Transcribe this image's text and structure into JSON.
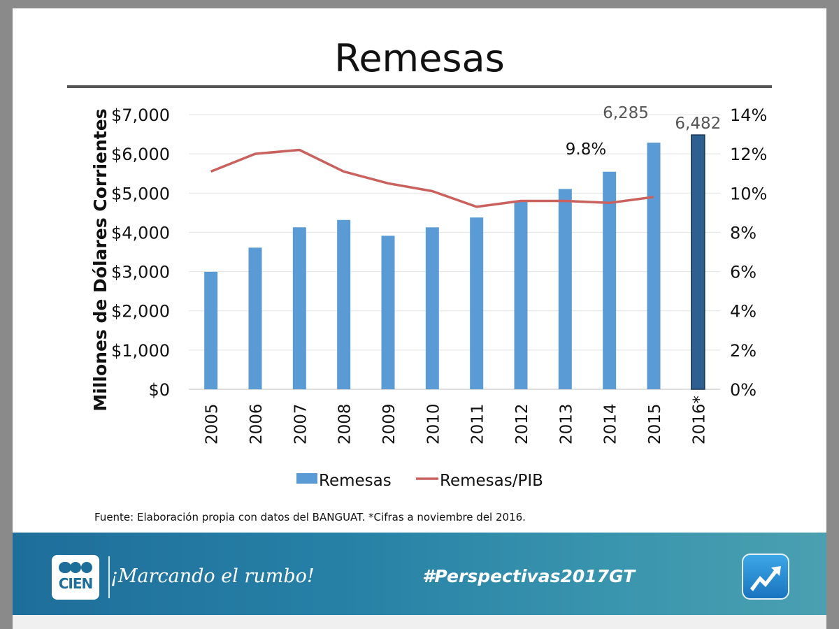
{
  "title": "Remesas",
  "source_note": "Fuente: Elaboración propia con datos del BANGUAT. *Cifras a noviembre del 2016.",
  "footer": {
    "logo_text": "CIEN",
    "slogan": "¡Marcando el rumbo!",
    "hashtag": "#Perspectivas2017GT",
    "app_icon": "trend-arrow-icon"
  },
  "colors": {
    "bar": "#5b9bd5",
    "bar_highlight": "#2e5f91",
    "line": "#c9625e",
    "footer": "#2680a6"
  },
  "chart_data": {
    "type": "bar",
    "categories": [
      "2005",
      "2006",
      "2007",
      "2008",
      "2009",
      "2010",
      "2011",
      "2012",
      "2013",
      "2014",
      "2015",
      "2016*"
    ],
    "series": [
      {
        "name": "Remesas",
        "type": "bar",
        "axis": "left",
        "values": [
          2993,
          3610,
          4128,
          4315,
          3912,
          4127,
          4378,
          4783,
          5105,
          5544,
          6285,
          6482
        ]
      },
      {
        "name": "Remesas/PIB",
        "type": "line",
        "axis": "right",
        "values": [
          11.1,
          12.0,
          12.2,
          11.1,
          10.5,
          10.1,
          9.3,
          9.6,
          9.6,
          9.5,
          9.8,
          null
        ]
      }
    ],
    "ylabel": "Millones de Dólares  Corrientes",
    "xlabel": "",
    "ylim": [
      0,
      7000
    ],
    "yticks": [
      "$0",
      "$1,000",
      "$2,000",
      "$3,000",
      "$4,000",
      "$5,000",
      "$6,000",
      "$7,000"
    ],
    "y2lim": [
      0,
      14
    ],
    "y2ticks": [
      "0%",
      "2%",
      "4%",
      "6%",
      "8%",
      "10%",
      "12%",
      "14%"
    ],
    "annotations": [
      {
        "text": "6,285",
        "target": "2015"
      },
      {
        "text": "6,482",
        "target": "2016*"
      },
      {
        "text": "9.8%",
        "target": "2014"
      }
    ],
    "highlight_category": "2016*",
    "legend": [
      "Remesas",
      "Remesas/PIB"
    ],
    "legend_position": "bottom",
    "grid": true
  }
}
